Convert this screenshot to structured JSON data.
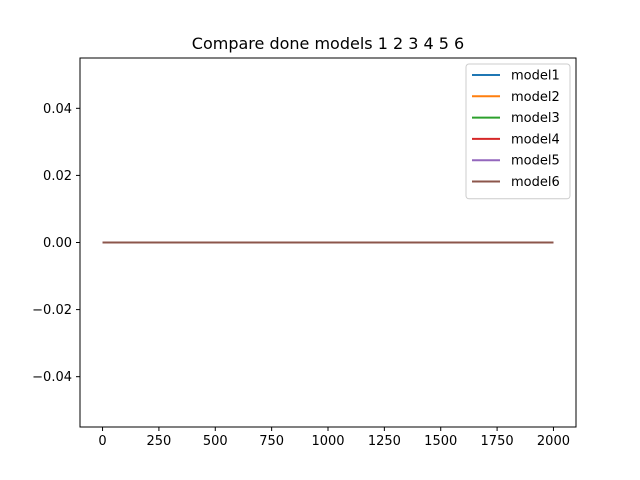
{
  "chart_data": {
    "type": "line",
    "title": "Compare done models 1 2 3 4 5 6",
    "xlabel": "",
    "ylabel": "",
    "xlim": [
      -100,
      2100
    ],
    "ylim": [
      -0.055,
      0.055
    ],
    "xticks": [
      0,
      250,
      500,
      750,
      1000,
      1250,
      1500,
      1750,
      2000
    ],
    "xtick_labels": [
      "0",
      "250",
      "500",
      "750",
      "1000",
      "1250",
      "1500",
      "1750",
      "2000"
    ],
    "yticks": [
      -0.04,
      -0.02,
      0.0,
      0.02,
      0.04
    ],
    "ytick_labels": [
      "−0.04",
      "−0.02",
      "0.00",
      "0.02",
      "0.04"
    ],
    "grid": false,
    "legend_position": "top-right",
    "series": [
      {
        "name": "model1",
        "color": "#1f77b4",
        "x": [
          0,
          2000
        ],
        "y": [
          0,
          0
        ]
      },
      {
        "name": "model2",
        "color": "#ff7f0e",
        "x": [
          0,
          2000
        ],
        "y": [
          0,
          0
        ]
      },
      {
        "name": "model3",
        "color": "#2ca02c",
        "x": [
          0,
          2000
        ],
        "y": [
          0,
          0
        ]
      },
      {
        "name": "model4",
        "color": "#d62728",
        "x": [
          0,
          2000
        ],
        "y": [
          0,
          0
        ]
      },
      {
        "name": "model5",
        "color": "#9467bd",
        "x": [
          0,
          2000
        ],
        "y": [
          0,
          0
        ]
      },
      {
        "name": "model6",
        "color": "#8c564b",
        "x": [
          0,
          2000
        ],
        "y": [
          0,
          0
        ]
      }
    ]
  }
}
